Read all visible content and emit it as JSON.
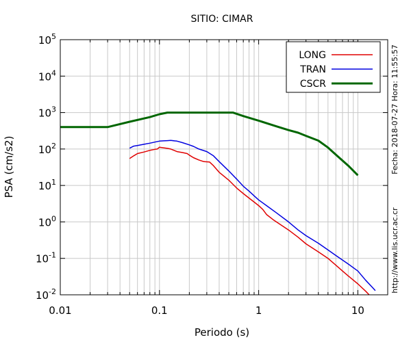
{
  "chart_data": {
    "type": "line",
    "title": "SITIO: CIMAR",
    "xlabel": "Periodo (s)",
    "ylabel": "PSA (cm/s2)",
    "xscale": "log",
    "yscale": "log",
    "xlim": [
      0.01,
      20
    ],
    "ylim": [
      0.01,
      100000
    ],
    "grid": true,
    "legend_position": "top-right",
    "x_ticks": [
      {
        "value": 0.01,
        "label": "0.01"
      },
      {
        "value": 0.1,
        "label": "0.1"
      },
      {
        "value": 1,
        "label": "1"
      },
      {
        "value": 10,
        "label": "10"
      }
    ],
    "y_ticks": [
      {
        "value": 0.01,
        "base": "10",
        "exp": "-2"
      },
      {
        "value": 0.1,
        "base": "10",
        "exp": "-1"
      },
      {
        "value": 1,
        "base": "10",
        "exp": "0"
      },
      {
        "value": 10,
        "base": "10",
        "exp": "1"
      },
      {
        "value": 100,
        "base": "10",
        "exp": "2"
      },
      {
        "value": 1000,
        "base": "10",
        "exp": "3"
      },
      {
        "value": 10000,
        "base": "10",
        "exp": "4"
      },
      {
        "value": 100000,
        "base": "10",
        "exp": "5"
      }
    ],
    "series": [
      {
        "name": "LONG",
        "color": "#e00000",
        "points": [
          [
            0.05,
            55
          ],
          [
            0.055,
            65
          ],
          [
            0.06,
            75
          ],
          [
            0.07,
            83
          ],
          [
            0.08,
            92
          ],
          [
            0.09,
            98
          ],
          [
            0.095,
            100
          ],
          [
            0.1,
            112
          ],
          [
            0.11,
            108
          ],
          [
            0.12,
            104
          ],
          [
            0.13,
            100
          ],
          [
            0.14,
            92
          ],
          [
            0.15,
            85
          ],
          [
            0.17,
            80
          ],
          [
            0.19,
            75
          ],
          [
            0.2,
            68
          ],
          [
            0.22,
            58
          ],
          [
            0.25,
            50
          ],
          [
            0.28,
            45
          ],
          [
            0.32,
            44
          ],
          [
            0.35,
            35
          ],
          [
            0.4,
            23
          ],
          [
            0.5,
            14
          ],
          [
            0.6,
            8.5
          ],
          [
            0.7,
            6
          ],
          [
            0.8,
            4.5
          ],
          [
            0.9,
            3.5
          ],
          [
            1.0,
            2.8
          ],
          [
            1.1,
            2.2
          ],
          [
            1.2,
            1.6
          ],
          [
            1.4,
            1.15
          ],
          [
            1.6,
            0.9
          ],
          [
            2.0,
            0.6
          ],
          [
            2.5,
            0.38
          ],
          [
            3.0,
            0.25
          ],
          [
            4.0,
            0.15
          ],
          [
            5.0,
            0.1
          ],
          [
            6.0,
            0.065
          ],
          [
            7.0,
            0.045
          ],
          [
            8.0,
            0.033
          ],
          [
            10.0,
            0.02
          ],
          [
            12.0,
            0.0125
          ],
          [
            13.0,
            0.01
          ]
        ]
      },
      {
        "name": "TRAN",
        "color": "#0000e0",
        "points": [
          [
            0.05,
            105
          ],
          [
            0.055,
            120
          ],
          [
            0.06,
            125
          ],
          [
            0.07,
            135
          ],
          [
            0.08,
            145
          ],
          [
            0.09,
            155
          ],
          [
            0.1,
            165
          ],
          [
            0.11,
            168
          ],
          [
            0.12,
            170
          ],
          [
            0.13,
            172
          ],
          [
            0.15,
            165
          ],
          [
            0.17,
            150
          ],
          [
            0.2,
            130
          ],
          [
            0.22,
            118
          ],
          [
            0.25,
            100
          ],
          [
            0.3,
            85
          ],
          [
            0.35,
            65
          ],
          [
            0.4,
            45
          ],
          [
            0.5,
            25
          ],
          [
            0.6,
            15
          ],
          [
            0.7,
            9.5
          ],
          [
            0.8,
            7
          ],
          [
            0.9,
            5.2
          ],
          [
            1.0,
            4.0
          ],
          [
            1.2,
            2.8
          ],
          [
            1.5,
            1.8
          ],
          [
            2.0,
            1.0
          ],
          [
            2.5,
            0.6
          ],
          [
            3.0,
            0.42
          ],
          [
            4.0,
            0.26
          ],
          [
            5.0,
            0.17
          ],
          [
            6.0,
            0.12
          ],
          [
            8.0,
            0.07
          ],
          [
            10.0,
            0.045
          ],
          [
            12.0,
            0.025
          ],
          [
            14.0,
            0.016
          ],
          [
            15.0,
            0.013
          ]
        ]
      },
      {
        "name": "CSCR",
        "color": "#006600",
        "points": [
          [
            0.01,
            400
          ],
          [
            0.03,
            400
          ],
          [
            0.05,
            560
          ],
          [
            0.08,
            750
          ],
          [
            0.1,
            900
          ],
          [
            0.12,
            1000
          ],
          [
            0.55,
            1000
          ],
          [
            0.7,
            800
          ],
          [
            1.0,
            600
          ],
          [
            1.5,
            420
          ],
          [
            2.0,
            330
          ],
          [
            2.5,
            280
          ],
          [
            3.0,
            230
          ],
          [
            4.0,
            170
          ],
          [
            5.0,
            110
          ],
          [
            6.0,
            70
          ],
          [
            8.0,
            35
          ],
          [
            10.0,
            19
          ]
        ]
      }
    ],
    "annotations": [
      "Fecha: 2018-07-27  Hora: 11:55:57",
      "http://www.lis.ucr.ac.cr"
    ]
  }
}
